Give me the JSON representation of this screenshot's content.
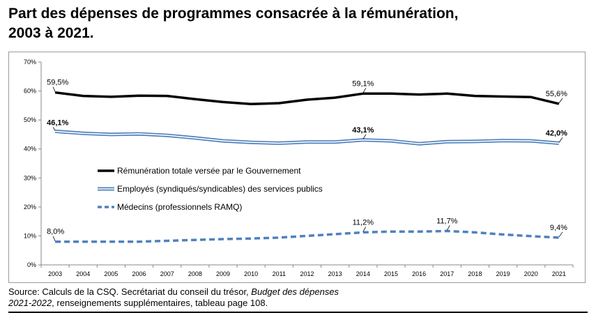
{
  "title_line1": "Part des dépenses de programmes consacrée à la rémunération,",
  "title_line2": "2003 à 2021.",
  "source_line1_prefix": "Source: Calculs de la CSQ. Secrétariat du conseil du trésor, ",
  "source_line1_italic": "Budget des dépenses",
  "source_line2_italic": "2021-2022",
  "source_line2_rest": ", renseignements supplémentaires, tableau page 108.",
  "chart_data": {
    "type": "line",
    "x": [
      2003,
      2004,
      2005,
      2006,
      2007,
      2008,
      2009,
      2010,
      2011,
      2012,
      2013,
      2014,
      2015,
      2016,
      2017,
      2018,
      2019,
      2020,
      2021
    ],
    "ylim": [
      0,
      70
    ],
    "yticks": [
      "0%",
      "10%",
      "20%",
      "30%",
      "40%",
      "50%",
      "60%",
      "70%"
    ],
    "legend_position": "center-left",
    "grid": false,
    "series": [
      {
        "name": "Rémunération totale versée par le Gouvernement",
        "color": "#000000",
        "style": "solid",
        "values": [
          59.5,
          58.3,
          58.0,
          58.4,
          58.3,
          57.2,
          56.2,
          55.5,
          55.8,
          57.0,
          57.7,
          59.1,
          59.1,
          58.8,
          59.1,
          58.3,
          58.1,
          57.9,
          55.6
        ]
      },
      {
        "name": "Employés (syndiqués/syndicables) des services publics",
        "color": "#4f81bd",
        "style": "double",
        "values": [
          46.1,
          45.4,
          45.0,
          45.2,
          44.7,
          43.8,
          42.8,
          42.3,
          42.0,
          42.4,
          42.4,
          43.1,
          42.8,
          41.8,
          42.5,
          42.6,
          42.9,
          42.8,
          42.0
        ]
      },
      {
        "name": "Médecins (professionnels RAMQ)",
        "color": "#4f81bd",
        "style": "dashed",
        "values": [
          8.0,
          8.0,
          8.0,
          8.0,
          8.3,
          8.6,
          8.9,
          9.1,
          9.4,
          10.0,
          10.6,
          11.2,
          11.5,
          11.5,
          11.7,
          11.2,
          10.5,
          9.9,
          9.4
        ]
      }
    ],
    "annotations": [
      {
        "series": 0,
        "x": 2003,
        "text": "59,5%",
        "bold": false
      },
      {
        "series": 0,
        "x": 2014,
        "text": "59,1%",
        "bold": false
      },
      {
        "series": 0,
        "x": 2021,
        "text": "55,6%",
        "bold": false
      },
      {
        "series": 1,
        "x": 2003,
        "text": "46,1%",
        "bold": true
      },
      {
        "series": 1,
        "x": 2014,
        "text": "43,1%",
        "bold": true
      },
      {
        "series": 1,
        "x": 2021,
        "text": "42,0%",
        "bold": true
      },
      {
        "series": 2,
        "x": 2003,
        "text": "8,0%",
        "bold": false
      },
      {
        "series": 2,
        "x": 2014,
        "text": "11,2%",
        "bold": false
      },
      {
        "series": 2,
        "x": 2017,
        "text": "11,7%",
        "bold": false
      },
      {
        "series": 2,
        "x": 2021,
        "text": "9,4%",
        "bold": false
      }
    ]
  }
}
